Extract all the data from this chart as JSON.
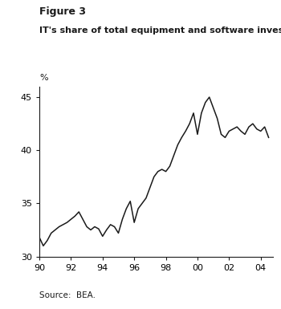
{
  "title_bold": "Figure 3",
  "subtitle_bold": "IT's share of total equipment and software investment",
  "ylabel": "%",
  "source": "Source:  BEA.",
  "xlim": [
    1990,
    2004.75
  ],
  "ylim": [
    30,
    46
  ],
  "yticks": [
    30,
    35,
    40,
    45
  ],
  "xtick_positions": [
    1990,
    1992,
    1994,
    1996,
    1998,
    2000,
    2002,
    2004
  ],
  "xtick_labels": [
    "90",
    "92",
    "94",
    "96",
    "98",
    "00",
    "02",
    "04"
  ],
  "line_color": "#1a1a1a",
  "line_width": 1.1,
  "background_color": "#ffffff",
  "x": [
    1990.0,
    1990.25,
    1990.5,
    1990.75,
    1991.0,
    1991.25,
    1991.5,
    1991.75,
    1992.0,
    1992.25,
    1992.5,
    1992.75,
    1993.0,
    1993.25,
    1993.5,
    1993.75,
    1994.0,
    1994.25,
    1994.5,
    1994.75,
    1995.0,
    1995.25,
    1995.5,
    1995.75,
    1996.0,
    1996.25,
    1996.5,
    1996.75,
    1997.0,
    1997.25,
    1997.5,
    1997.75,
    1998.0,
    1998.25,
    1998.5,
    1998.75,
    1999.0,
    1999.25,
    1999.5,
    1999.75,
    2000.0,
    2000.25,
    2000.5,
    2000.75,
    2001.0,
    2001.25,
    2001.5,
    2001.75,
    2002.0,
    2002.25,
    2002.5,
    2002.75,
    2003.0,
    2003.25,
    2003.5,
    2003.75,
    2004.0,
    2004.25,
    2004.5
  ],
  "y": [
    31.8,
    31.0,
    31.5,
    32.2,
    32.5,
    32.8,
    33.0,
    33.2,
    33.5,
    33.8,
    34.2,
    33.5,
    32.8,
    32.5,
    32.8,
    32.6,
    31.9,
    32.5,
    33.0,
    32.8,
    32.2,
    33.5,
    34.5,
    35.2,
    33.2,
    34.5,
    35.0,
    35.5,
    36.5,
    37.5,
    38.0,
    38.2,
    38.0,
    38.5,
    39.5,
    40.5,
    41.2,
    41.8,
    42.5,
    43.5,
    41.5,
    43.5,
    44.5,
    45.0,
    44.0,
    43.0,
    41.5,
    41.2,
    41.8,
    42.0,
    42.2,
    41.8,
    41.5,
    42.2,
    42.5,
    42.0,
    41.8,
    42.2,
    41.2
  ]
}
